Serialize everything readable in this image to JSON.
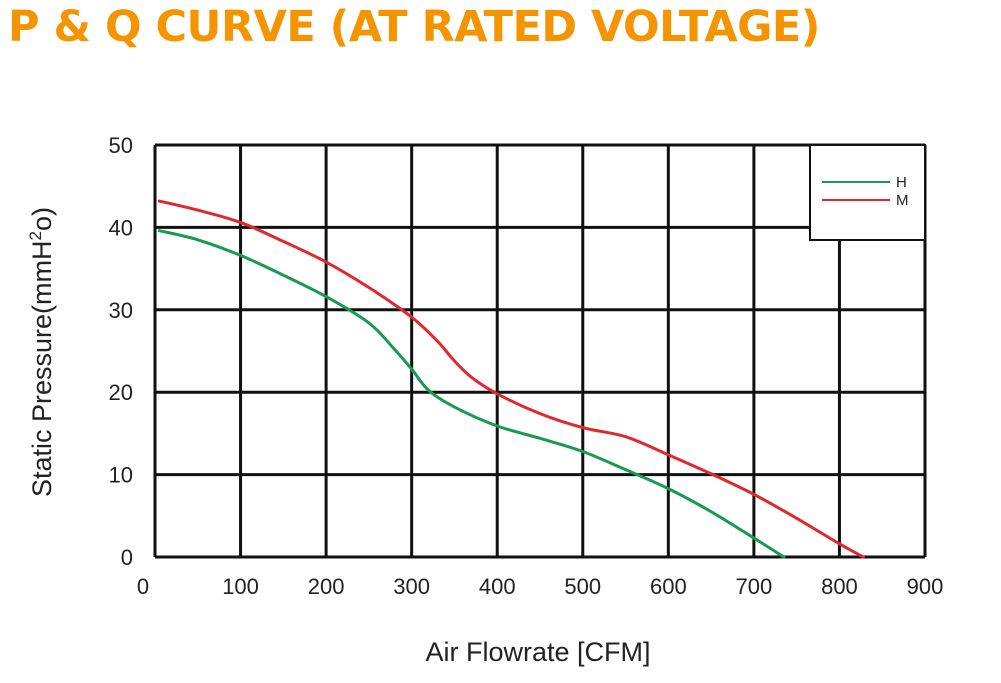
{
  "title": "P & Q CURVE (AT RATED VOLTAGE)",
  "colors": {
    "title": "#f39400",
    "grid": "#111111"
  },
  "chart_data": {
    "type": "line",
    "xlabel": "Air  Flowrate   [CFM]",
    "ylabel_main": "Static Pressure(mmH",
    "ylabel_sup": "2",
    "ylabel_end": "o)",
    "xlim": [
      0,
      900
    ],
    "ylim": [
      0,
      50
    ],
    "x_ticks": [
      0,
      100,
      200,
      300,
      400,
      500,
      600,
      700,
      800,
      900
    ],
    "y_ticks": [
      0,
      10,
      20,
      30,
      40,
      50
    ],
    "grid": true,
    "legend_position": "top-right",
    "series": [
      {
        "name": "H",
        "color": "#1a9a50",
        "points": [
          [
            5,
            39.6
          ],
          [
            50,
            38.5
          ],
          [
            100,
            36.6
          ],
          [
            150,
            34.2
          ],
          [
            200,
            31.6
          ],
          [
            250,
            28.4
          ],
          [
            280,
            25.2
          ],
          [
            300,
            22.8
          ],
          [
            320,
            20.2
          ],
          [
            350,
            18.2
          ],
          [
            400,
            15.9
          ],
          [
            450,
            14.4
          ],
          [
            500,
            12.8
          ],
          [
            550,
            10.6
          ],
          [
            600,
            8.3
          ],
          [
            650,
            5.5
          ],
          [
            700,
            2.3
          ],
          [
            735,
            0
          ]
        ]
      },
      {
        "name": "M",
        "color": "#e0282e",
        "points": [
          [
            5,
            43.2
          ],
          [
            50,
            42.1
          ],
          [
            100,
            40.6
          ],
          [
            150,
            38.3
          ],
          [
            200,
            35.8
          ],
          [
            250,
            32.7
          ],
          [
            300,
            29.1
          ],
          [
            330,
            26.2
          ],
          [
            350,
            23.8
          ],
          [
            370,
            21.8
          ],
          [
            400,
            19.8
          ],
          [
            450,
            17.4
          ],
          [
            500,
            15.7
          ],
          [
            550,
            14.6
          ],
          [
            600,
            12.4
          ],
          [
            650,
            10.1
          ],
          [
            700,
            7.6
          ],
          [
            750,
            4.7
          ],
          [
            800,
            1.6
          ],
          [
            828,
            0
          ]
        ]
      }
    ]
  }
}
